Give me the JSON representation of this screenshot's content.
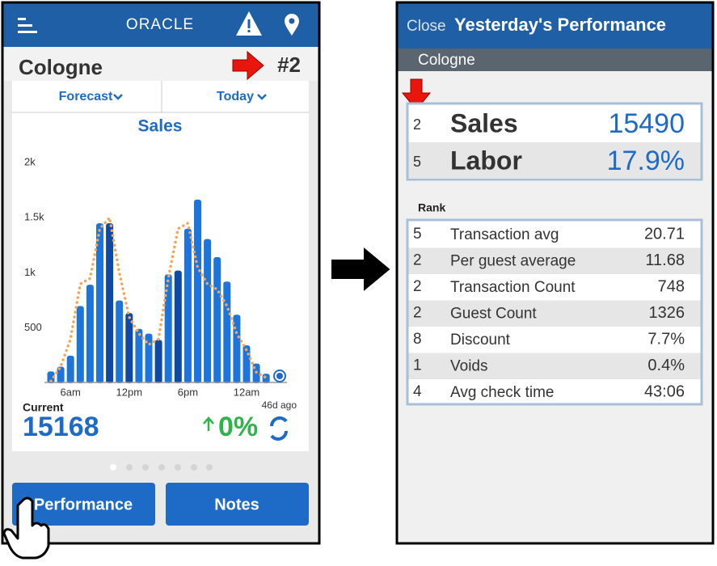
{
  "left_screen": {
    "header": {
      "logo": "ORACLE"
    },
    "location": "Cologne",
    "rank": "#2",
    "tabs": [
      "Forecast",
      "Today"
    ],
    "current_label": "Current",
    "current_value": 15168,
    "change": "0%",
    "age": "46d ago",
    "buttons": [
      "Performance",
      "Notes"
    ]
  },
  "chart_data": {
    "type": "bar",
    "title": "Sales",
    "categories": [
      null,
      null,
      "6am",
      null,
      null,
      null,
      null,
      null,
      "12pm",
      null,
      null,
      null,
      null,
      null,
      "6pm",
      null,
      null,
      null,
      null,
      null,
      "12am",
      null,
      null
    ],
    "values": [
      107,
      150,
      250,
      700,
      893,
      1450,
      1450,
      750,
      636,
      493,
      450,
      393,
      986,
      1021,
      1400,
      1664,
      1307,
      1143,
      921,
      621,
      343,
      179,
      86
    ],
    "colors": [
      "#1d74db",
      "#1d74db",
      "#1d74db",
      "#1d74db",
      "#1d74db",
      "#1d74db",
      "#0e4aa3",
      "#1d74db",
      "#0e4aa3",
      "#1d74db",
      "#1d74db",
      "#0e4aa3",
      "#1d74db",
      "#0e4aa3",
      "#1d74db",
      "#1d74db",
      "#1d74db",
      "#1d74db",
      "#1d74db",
      "#1d74db",
      "#1d74db",
      "#1d74db",
      "#1d74db"
    ],
    "line": {
      "color": "#f2a65a",
      "values": [
        20,
        150,
        400,
        900,
        950,
        1400,
        1500,
        1000,
        600,
        450,
        350,
        400,
        950,
        1400,
        1450,
        1050,
        900,
        850,
        700,
        450,
        300,
        100,
        50
      ]
    },
    "ylim": [
      0,
      2000
    ],
    "yticks": [
      500,
      {
        "value": 1000,
        "label": "1k"
      },
      {
        "value": 1500,
        "label": "1.5k"
      },
      {
        "value": 2000,
        "label": "2k"
      }
    ]
  },
  "right_screen": {
    "close": "Close",
    "title": "Yesterday's Performance",
    "location": "Cologne",
    "summary": [
      {
        "rank": 2,
        "label": "Sales",
        "value": 15490
      },
      {
        "rank": 5,
        "label": "Labor",
        "value": "17.9%"
      }
    ],
    "rank_header": "Rank",
    "rows": [
      {
        "rank": 5,
        "label": "Transaction avg",
        "value": 20.71
      },
      {
        "rank": 2,
        "label": "Per guest average",
        "value": 11.68
      },
      {
        "rank": 2,
        "label": "Transaction Count",
        "value": 748
      },
      {
        "rank": 2,
        "label": "Guest Count",
        "value": 1326
      },
      {
        "rank": 8,
        "label": "Discount",
        "value": "7.7%"
      },
      {
        "rank": 1,
        "label": "Voids",
        "value": "0.4%"
      },
      {
        "rank": 4,
        "label": "Avg check time",
        "value": "43:06"
      }
    ]
  }
}
